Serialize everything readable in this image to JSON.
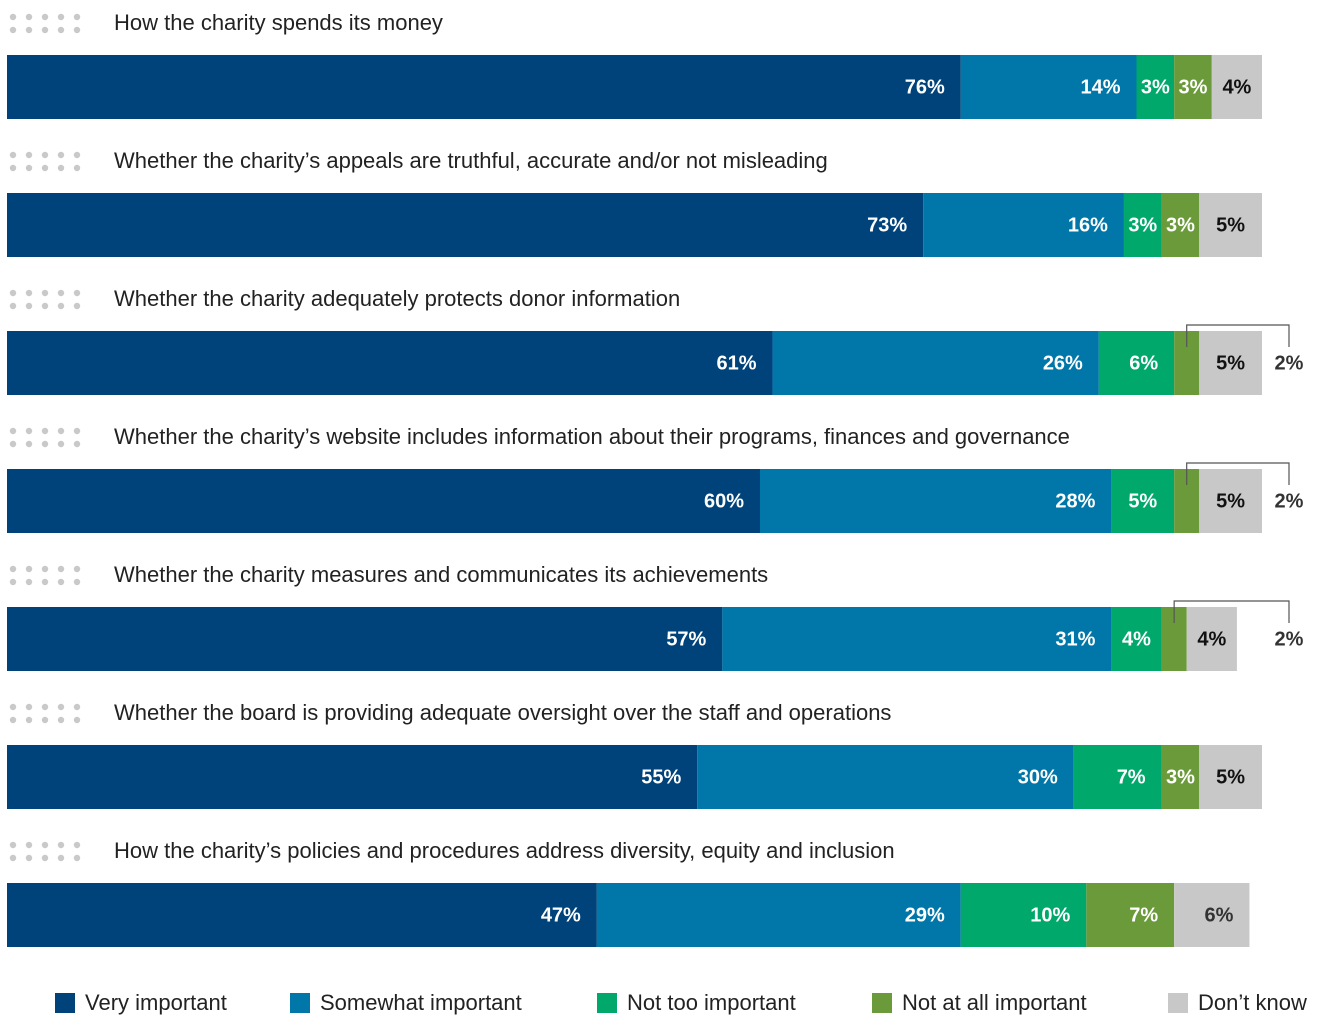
{
  "chart_data": {
    "type": "stacked-bar",
    "categories": [
      "How the charity spends its money",
      "Whether the charity’s appeals are truthful, accurate and/or not misleading",
      "Whether the charity adequately protects donor information",
      "Whether the charity’s website includes information about their programs, finances and governance",
      "Whether the charity measures and communicates its achievements",
      "Whether the board is providing adequate oversight over the staff and operations",
      "How the charity’s policies and procedures address diversity, equity and inclusion"
    ],
    "xlim": [
      0,
      100
    ],
    "series": [
      {
        "name": "Very important",
        "color": "#00427a",
        "values": [
          76,
          73,
          61,
          60,
          57,
          55,
          47
        ],
        "value_labels": [
          "76%",
          "73%",
          "61%",
          "60%",
          "57%",
          "55%",
          "47%"
        ]
      },
      {
        "name": "Somewhat important",
        "color": "#0077a8",
        "values": [
          14,
          16,
          26,
          28,
          31,
          30,
          29
        ],
        "value_labels": [
          "14%",
          "16%",
          "26%",
          "28%",
          "31%",
          "30%",
          "29%"
        ]
      },
      {
        "name": "Not too important",
        "color": "#00a86b",
        "values": [
          3,
          3,
          6,
          5,
          4,
          7,
          10
        ],
        "value_labels": [
          "3%",
          "3%",
          "6%",
          "5%",
          "4%",
          "7%",
          "10%"
        ]
      },
      {
        "name": "Not at all important",
        "color": "#6a9a3a",
        "values": [
          3,
          3,
          2,
          2,
          2,
          3,
          7
        ],
        "value_labels": [
          "3%",
          "3%",
          "2%",
          "2%",
          "2%",
          "3%",
          "7%"
        ]
      },
      {
        "name": "Don’t know",
        "color": "#c8c8c8",
        "values": [
          4,
          5,
          5,
          5,
          4,
          5,
          6
        ],
        "value_labels": [
          "4%",
          "5%",
          "5%",
          "5%",
          "4%",
          "5%",
          "6%"
        ]
      }
    ]
  }
}
